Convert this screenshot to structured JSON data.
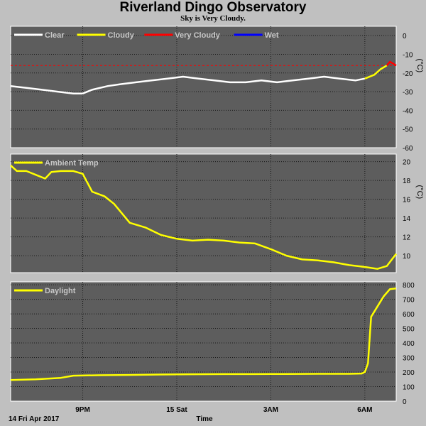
{
  "title": "Riverland Dingo Observatory",
  "subtitle": "Sky is Very Cloudy.",
  "x_axis": {
    "label": "Time",
    "start_label": "14 Fri Apr 2017",
    "ticks": [
      {
        "label": "9PM",
        "hour": 21
      },
      {
        "label": "15 Sat",
        "hour": 24
      },
      {
        "label": "3AM",
        "hour": 27
      },
      {
        "label": "6AM",
        "hour": 30
      }
    ],
    "range_hours": [
      18.7,
      31.0
    ]
  },
  "chart_data": [
    {
      "type": "line",
      "name": "sky",
      "unit": "(°C)",
      "ylim": [
        -60,
        5
      ],
      "yticks": [
        0,
        -10,
        -20,
        -30,
        -40,
        -50,
        -60
      ],
      "legend": [
        {
          "label": "Clear",
          "color": "#ffffff"
        },
        {
          "label": "Cloudy",
          "color": "#ffff00"
        },
        {
          "label": "Very Cloudy",
          "color": "#ff0000"
        },
        {
          "label": "Wet",
          "color": "#0000ff"
        }
      ],
      "threshold": {
        "value": -16,
        "color": "#ff0000"
      },
      "series": [
        {
          "name": "Clear",
          "color": "#ffffff",
          "x": [
            18.7,
            19.2,
            19.7,
            20.2,
            20.7,
            21.0,
            21.3,
            21.8,
            22.2,
            22.7,
            23.2,
            23.7,
            24.2,
            24.7,
            25.2,
            25.7,
            26.2,
            26.7,
            27.2,
            27.7,
            28.2,
            28.7,
            29.2,
            29.7,
            30.0
          ],
          "y": [
            -27,
            -28,
            -29,
            -30,
            -31,
            -31,
            -29,
            -27,
            -26,
            -25,
            -24,
            -23,
            -22,
            -23,
            -24,
            -25,
            -25,
            -24,
            -25,
            -24,
            -23,
            -22,
            -23,
            -24,
            -23
          ]
        },
        {
          "name": "Cloudy",
          "color": "#ffff00",
          "x": [
            30.0,
            30.3,
            30.5,
            30.6,
            30.7
          ],
          "y": [
            -23,
            -21,
            -18,
            -17,
            -16
          ]
        },
        {
          "name": "Very Cloudy",
          "color": "#ff0000",
          "x": [
            30.7,
            30.8,
            30.9,
            31.0
          ],
          "y": [
            -16,
            -14,
            -15,
            -16
          ]
        }
      ]
    },
    {
      "type": "line",
      "name": "ambient",
      "unit": "(°C)",
      "ylim": [
        8.2,
        20.8
      ],
      "yticks": [
        20,
        18,
        16,
        14,
        12,
        10
      ],
      "legend": [
        {
          "label": "Ambient Temp",
          "color": "#ffff00"
        }
      ],
      "series": [
        {
          "name": "Ambient Temp",
          "color": "#ffff00",
          "x": [
            18.7,
            18.9,
            19.2,
            19.5,
            19.8,
            20.0,
            20.3,
            20.7,
            21.0,
            21.3,
            21.7,
            22.0,
            22.5,
            23.0,
            23.5,
            24.0,
            24.5,
            25.0,
            25.5,
            26.0,
            26.5,
            27.0,
            27.5,
            28.0,
            28.5,
            29.0,
            29.5,
            30.0,
            30.4,
            30.7,
            31.0
          ],
          "y": [
            19.6,
            19.0,
            19.0,
            18.6,
            18.2,
            18.9,
            19.0,
            19.0,
            18.7,
            16.8,
            16.3,
            15.5,
            13.5,
            13.0,
            12.2,
            11.8,
            11.6,
            11.7,
            11.6,
            11.4,
            11.3,
            10.7,
            10.0,
            9.6,
            9.5,
            9.3,
            9.0,
            8.8,
            8.6,
            8.9,
            10.2
          ]
        }
      ]
    },
    {
      "type": "line",
      "name": "daylight",
      "unit": "",
      "ylim": [
        0,
        820
      ],
      "yticks": [
        800,
        700,
        600,
        500,
        400,
        300,
        200,
        100,
        0
      ],
      "legend": [
        {
          "label": "Daylight",
          "color": "#ffff00"
        }
      ],
      "series": [
        {
          "name": "Daylight",
          "color": "#ffff00",
          "x": [
            18.7,
            19.5,
            20.3,
            20.7,
            21.5,
            22.5,
            23.5,
            24.5,
            25.5,
            26.5,
            27.5,
            28.5,
            29.5,
            29.9,
            30.0,
            30.1,
            30.2,
            30.4,
            30.6,
            30.8,
            31.0
          ],
          "y": [
            145,
            150,
            160,
            175,
            178,
            180,
            183,
            185,
            186,
            186,
            187,
            188,
            188,
            190,
            200,
            260,
            580,
            650,
            720,
            770,
            775
          ]
        }
      ]
    }
  ]
}
